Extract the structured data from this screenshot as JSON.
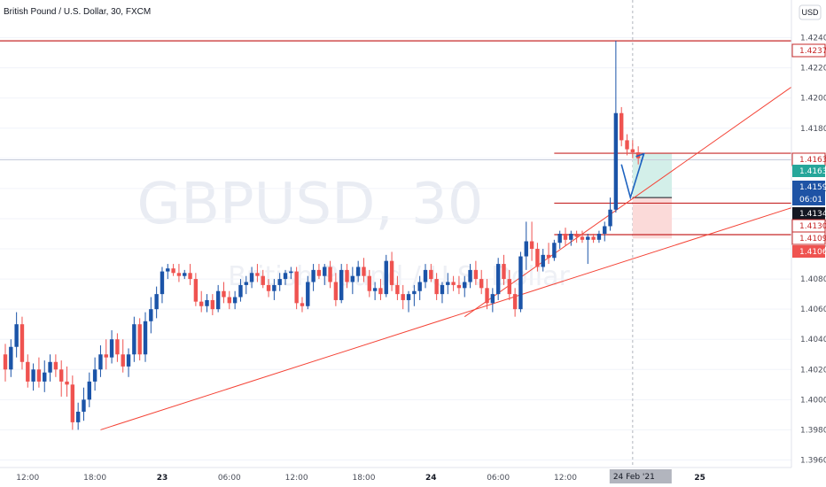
{
  "header": {
    "title": "British Pound / U.S. Dollar, 30, FXCM",
    "currency_button": "USD"
  },
  "watermark": {
    "symbol": "GBPUSD, 30",
    "name": "British Pound / U.S. Dollar"
  },
  "colors": {
    "up": "#1b54a8",
    "down": "#ef5350",
    "level_line": "#c62828",
    "trend_line": "#f44336",
    "profit_zone": "#d3efe9",
    "loss_zone": "#fbdad9",
    "projection": "#1e63c0"
  },
  "chart_data": {
    "type": "candlestick",
    "symbol": "GBPUSD",
    "interval": "30",
    "y_axis": {
      "range": [
        1.3955,
        1.4265
      ],
      "ticks": [
        "1.39600",
        "1.39800",
        "1.40000",
        "1.40200",
        "1.40400",
        "1.40600",
        "1.40800",
        "1.41000",
        "1.41200",
        "1.41400",
        "1.41600",
        "1.41800",
        "1.42000",
        "1.42200",
        "1.42400"
      ]
    },
    "x_axis": {
      "ticks": [
        {
          "label": "12:00",
          "bar": 4,
          "bold": false
        },
        {
          "label": "18:00",
          "bar": 16,
          "bold": false
        },
        {
          "label": "23",
          "bar": 28,
          "bold": true
        },
        {
          "label": "06:00",
          "bar": 40,
          "bold": false
        },
        {
          "label": "12:00",
          "bar": 52,
          "bold": false
        },
        {
          "label": "18:00",
          "bar": 64,
          "bold": false
        },
        {
          "label": "24",
          "bar": 76,
          "bold": true
        },
        {
          "label": "06:00",
          "bar": 88,
          "bold": false
        },
        {
          "label": "12:00",
          "bar": 100,
          "bold": false
        },
        {
          "label": "18:00",
          "bar": 112,
          "bold": false
        },
        {
          "label": "25",
          "bar": 124,
          "bold": true
        }
      ],
      "crosshair_label": "24 Feb '21"
    },
    "candles": [
      [
        1.403,
        1.4037,
        1.4012,
        1.402
      ],
      [
        1.402,
        1.404,
        1.4015,
        1.4035
      ],
      [
        1.4035,
        1.4058,
        1.4028,
        1.405
      ],
      [
        1.405,
        1.4055,
        1.402,
        1.4025
      ],
      [
        1.4025,
        1.403,
        1.4008,
        1.4012
      ],
      [
        1.4012,
        1.4024,
        1.4006,
        1.402
      ],
      [
        1.402,
        1.4028,
        1.4008,
        1.4012
      ],
      [
        1.4012,
        1.4026,
        1.4005,
        1.4018
      ],
      [
        1.4018,
        1.403,
        1.4012,
        1.4025
      ],
      [
        1.4025,
        1.403,
        1.4015,
        1.402
      ],
      [
        1.402,
        1.4026,
        1.4002,
        1.4012
      ],
      [
        1.4012,
        1.4022,
        1.4002,
        1.401
      ],
      [
        1.401,
        1.4016,
        1.398,
        1.3985
      ],
      [
        1.3985,
        1.3998,
        1.398,
        1.3992
      ],
      [
        1.3992,
        1.4008,
        1.3986,
        1.4
      ],
      [
        1.4,
        1.4018,
        1.3995,
        1.4012
      ],
      [
        1.4012,
        1.4028,
        1.4006,
        1.402
      ],
      [
        1.402,
        1.4036,
        1.4015,
        1.403
      ],
      [
        1.403,
        1.404,
        1.402,
        1.4028
      ],
      [
        1.4028,
        1.4046,
        1.4024,
        1.404
      ],
      [
        1.404,
        1.4044,
        1.4025,
        1.403
      ],
      [
        1.403,
        1.404,
        1.4018,
        1.4022
      ],
      [
        1.4022,
        1.4034,
        1.4015,
        1.403
      ],
      [
        1.403,
        1.4055,
        1.4025,
        1.405
      ],
      [
        1.405,
        1.4054,
        1.4026,
        1.403
      ],
      [
        1.403,
        1.4058,
        1.4025,
        1.4052
      ],
      [
        1.4052,
        1.4068,
        1.4044,
        1.406
      ],
      [
        1.406,
        1.4075,
        1.4054,
        1.407
      ],
      [
        1.407,
        1.4088,
        1.4064,
        1.4085
      ],
      [
        1.4085,
        1.409,
        1.408,
        1.4087
      ],
      [
        1.4087,
        1.409,
        1.4082,
        1.4084
      ],
      [
        1.4084,
        1.409,
        1.4078,
        1.4082
      ],
      [
        1.4082,
        1.4086,
        1.408,
        1.4084
      ],
      [
        1.4084,
        1.409,
        1.4076,
        1.408
      ],
      [
        1.408,
        1.4084,
        1.4062,
        1.4065
      ],
      [
        1.4065,
        1.4072,
        1.4058,
        1.4062
      ],
      [
        1.4062,
        1.407,
        1.4058,
        1.4066
      ],
      [
        1.4066,
        1.407,
        1.4056,
        1.406
      ],
      [
        1.406,
        1.4076,
        1.4058,
        1.4072
      ],
      [
        1.4072,
        1.4078,
        1.4064,
        1.4068
      ],
      [
        1.4068,
        1.4072,
        1.406,
        1.4064
      ],
      [
        1.4064,
        1.4072,
        1.406,
        1.4068
      ],
      [
        1.4068,
        1.408,
        1.4065,
        1.4076
      ],
      [
        1.4076,
        1.4082,
        1.407,
        1.4078
      ],
      [
        1.4078,
        1.4088,
        1.4074,
        1.4084
      ],
      [
        1.4084,
        1.409,
        1.4078,
        1.4082
      ],
      [
        1.4082,
        1.4086,
        1.4074,
        1.4076
      ],
      [
        1.4076,
        1.408,
        1.4068,
        1.4072
      ],
      [
        1.4072,
        1.408,
        1.4066,
        1.4076
      ],
      [
        1.4076,
        1.4084,
        1.4072,
        1.408
      ],
      [
        1.408,
        1.4086,
        1.4076,
        1.4084
      ],
      [
        1.4084,
        1.4088,
        1.408,
        1.4085
      ],
      [
        1.4085,
        1.4088,
        1.406,
        1.4064
      ],
      [
        1.4064,
        1.4068,
        1.4058,
        1.4062
      ],
      [
        1.4062,
        1.4082,
        1.406,
        1.4078
      ],
      [
        1.4078,
        1.409,
        1.4072,
        1.4086
      ],
      [
        1.4086,
        1.409,
        1.408,
        1.4082
      ],
      [
        1.4082,
        1.409,
        1.4076,
        1.4088
      ],
      [
        1.4088,
        1.4092,
        1.4074,
        1.4078
      ],
      [
        1.4078,
        1.4084,
        1.4062,
        1.4066
      ],
      [
        1.4066,
        1.409,
        1.4064,
        1.4086
      ],
      [
        1.4086,
        1.409,
        1.4074,
        1.4078
      ],
      [
        1.4078,
        1.4088,
        1.407,
        1.4082
      ],
      [
        1.4082,
        1.4092,
        1.4078,
        1.4088
      ],
      [
        1.4088,
        1.4094,
        1.4078,
        1.4082
      ],
      [
        1.4082,
        1.4086,
        1.4068,
        1.4072
      ],
      [
        1.4072,
        1.4078,
        1.4066,
        1.4074
      ],
      [
        1.4074,
        1.408,
        1.4066,
        1.407
      ],
      [
        1.407,
        1.4096,
        1.4068,
        1.4092
      ],
      [
        1.4092,
        1.4098,
        1.4072,
        1.4076
      ],
      [
        1.4076,
        1.4082,
        1.4066,
        1.407
      ],
      [
        1.407,
        1.4076,
        1.406,
        1.4066
      ],
      [
        1.4066,
        1.4072,
        1.4058,
        1.407
      ],
      [
        1.407,
        1.4076,
        1.4062,
        1.4072
      ],
      [
        1.4072,
        1.4082,
        1.4066,
        1.4078
      ],
      [
        1.4078,
        1.409,
        1.4074,
        1.4086
      ],
      [
        1.4086,
        1.409,
        1.4078,
        1.408
      ],
      [
        1.408,
        1.4084,
        1.4066,
        1.407
      ],
      [
        1.407,
        1.4078,
        1.4064,
        1.4076
      ],
      [
        1.4076,
        1.4084,
        1.407,
        1.4078
      ],
      [
        1.4078,
        1.4082,
        1.4072,
        1.4076
      ],
      [
        1.4076,
        1.4082,
        1.407,
        1.4074
      ],
      [
        1.4074,
        1.4082,
        1.4068,
        1.4078
      ],
      [
        1.4078,
        1.409,
        1.4074,
        1.4086
      ],
      [
        1.4086,
        1.4092,
        1.4076,
        1.408
      ],
      [
        1.408,
        1.4086,
        1.407,
        1.4074
      ],
      [
        1.4074,
        1.408,
        1.406,
        1.4064
      ],
      [
        1.4064,
        1.4074,
        1.4058,
        1.407
      ],
      [
        1.407,
        1.4094,
        1.4066,
        1.409
      ],
      [
        1.409,
        1.4096,
        1.4076,
        1.408
      ],
      [
        1.408,
        1.4086,
        1.4066,
        1.407
      ],
      [
        1.407,
        1.4074,
        1.4055,
        1.406
      ],
      [
        1.406,
        1.4098,
        1.4058,
        1.4095
      ],
      [
        1.4095,
        1.4118,
        1.4086,
        1.4105
      ],
      [
        1.4105,
        1.4118,
        1.4092,
        1.41
      ],
      [
        1.41,
        1.4104,
        1.4085,
        1.4088
      ],
      [
        1.4088,
        1.41,
        1.4085,
        1.4096
      ],
      [
        1.4096,
        1.4104,
        1.409,
        1.4094
      ],
      [
        1.4094,
        1.4106,
        1.4092,
        1.4104
      ],
      [
        1.4104,
        1.4112,
        1.41,
        1.411
      ],
      [
        1.411,
        1.4114,
        1.4102,
        1.4106
      ],
      [
        1.4106,
        1.4112,
        1.4102,
        1.411
      ],
      [
        1.411,
        1.4112,
        1.4104,
        1.4108
      ],
      [
        1.4108,
        1.4112,
        1.4104,
        1.4106
      ],
      [
        1.4106,
        1.411,
        1.409,
        1.4108
      ],
      [
        1.4108,
        1.411,
        1.4104,
        1.4106
      ],
      [
        1.4106,
        1.4112,
        1.4104,
        1.411
      ],
      [
        1.411,
        1.4118,
        1.4105,
        1.4115
      ],
      [
        1.4115,
        1.4134,
        1.4112,
        1.4126
      ],
      [
        1.4126,
        1.4238,
        1.4124,
        1.419
      ],
      [
        1.419,
        1.4194,
        1.4168,
        1.4172
      ],
      [
        1.4172,
        1.4176,
        1.4162,
        1.4166
      ],
      [
        1.4166,
        1.4172,
        1.416,
        1.4164
      ],
      [
        1.4164,
        1.4168,
        1.4156,
        1.416
      ]
    ],
    "first_bar_x": 6,
    "bar_spacing": 6.32,
    "price_labels": [
      {
        "value": "1.42379",
        "price": 1.42379,
        "kind": "level"
      },
      {
        "value": "1.41634",
        "price": 1.41634,
        "kind": "level"
      },
      {
        "value": "1.41631",
        "price": 1.41631,
        "kind": "target"
      },
      {
        "value": "1.41590",
        "price": 1.4159,
        "kind": "current"
      },
      {
        "value": "06:01",
        "price": 1.4159,
        "kind": "countdown"
      },
      {
        "value": "1.41340",
        "price": 1.4134,
        "kind": "entry"
      },
      {
        "value": "1.41303",
        "price": 1.41303,
        "kind": "level"
      },
      {
        "value": "1.41094",
        "price": 1.41094,
        "kind": "level"
      },
      {
        "value": "1.41069",
        "price": 1.41069,
        "kind": "stop"
      }
    ],
    "horizontal_levels": [
      1.42379,
      1.41634,
      1.41303,
      1.41094
    ],
    "trend_lines": [
      {
        "from": {
          "bar": 17,
          "price": 1.398
        },
        "to": {
          "bar": 141,
          "price": 1.4128
        }
      },
      {
        "from": {
          "bar": 82,
          "price": 1.4055
        },
        "to": {
          "bar": 141,
          "price": 1.4209
        }
      }
    ],
    "position": {
      "start_bar": 112,
      "end_bar": 119,
      "target": 1.41631,
      "entry": 1.4134,
      "stop": 1.41069
    },
    "projection_path": [
      {
        "bar": 110,
        "price": 1.4156
      },
      {
        "bar": 111.6,
        "price": 1.4134
      },
      {
        "bar": 114,
        "price": 1.4163
      }
    ],
    "crosshair_bar": 112
  }
}
